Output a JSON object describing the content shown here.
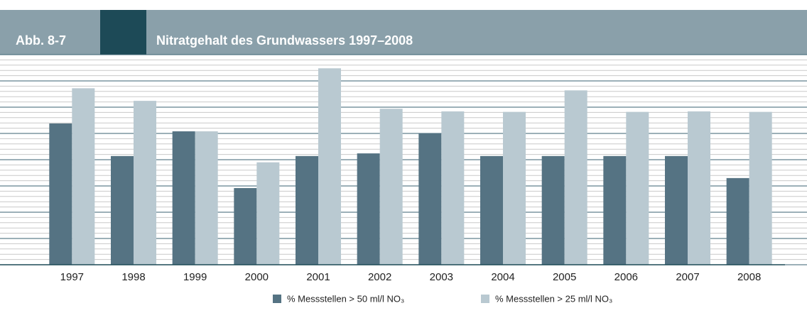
{
  "chart_data": {
    "type": "bar",
    "figure_label": "Abb. 8-7",
    "title": "Nitratgehalt des Grundwassers 1997–2008",
    "categories": [
      "1997",
      "1998",
      "1999",
      "2000",
      "2001",
      "2002",
      "2003",
      "2004",
      "2005",
      "2006",
      "2007",
      "2008"
    ],
    "series": [
      {
        "name": "% Messstellen > 50 ml/l NO₃",
        "color": "#557383",
        "values": [
          26.9,
          20.7,
          25.4,
          14.6,
          20.7,
          21.2,
          25.0,
          20.7,
          20.7,
          20.7,
          20.7,
          16.5
        ]
      },
      {
        "name": "% Messstellen > 25 ml/l NO₃",
        "color": "#b9c9d1",
        "values": [
          33.6,
          31.2,
          25.4,
          19.5,
          37.4,
          29.7,
          29.2,
          29.1,
          33.2,
          29.1,
          29.2,
          29.1
        ]
      }
    ],
    "ylim": [
      0,
      40
    ],
    "yticks": [
      0,
      5,
      10,
      15,
      20,
      25,
      30,
      35,
      40
    ],
    "grid": true
  }
}
